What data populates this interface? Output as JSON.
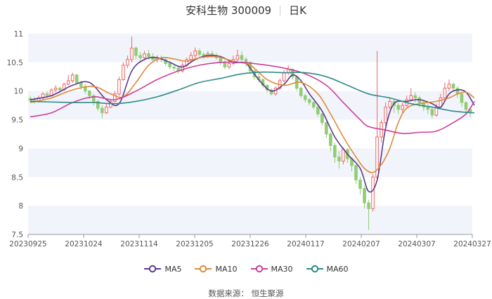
{
  "chart_data": {
    "type": "candlestick",
    "title": "安科生物 300009",
    "period": "日K",
    "x_ticks": [
      "20230925",
      "20231024",
      "20231114",
      "20231205",
      "20231226",
      "20240117",
      "20240207",
      "20240307",
      "20240327"
    ],
    "y_ticks": [
      "7.5",
      "8",
      "8.5",
      "9",
      "9.5",
      "10",
      "10.5",
      "11"
    ],
    "ylim": [
      7.5,
      11
    ],
    "grid": "horizontal bands",
    "legend_position": "bottom",
    "up_color": "#ee6666",
    "down_color": "#91cc75",
    "candles": [
      [
        9.87,
        9.84,
        9.92,
        9.8
      ],
      [
        9.84,
        9.82,
        9.9,
        9.78
      ],
      [
        9.82,
        9.88,
        9.92,
        9.8
      ],
      [
        9.88,
        9.95,
        9.98,
        9.85
      ],
      [
        9.95,
        9.92,
        10.0,
        9.88
      ],
      [
        9.92,
        10.02,
        10.05,
        9.9
      ],
      [
        10.02,
        10.05,
        10.1,
        9.98
      ],
      [
        10.05,
        10.02,
        10.08,
        9.96
      ],
      [
        10.02,
        10.12,
        10.15,
        10.0
      ],
      [
        10.12,
        10.18,
        10.28,
        10.1
      ],
      [
        10.18,
        10.28,
        10.32,
        10.14
      ],
      [
        10.28,
        10.15,
        10.3,
        10.1
      ],
      [
        10.15,
        10.08,
        10.18,
        10.02
      ],
      [
        10.08,
        10.0,
        10.12,
        9.95
      ],
      [
        10.0,
        9.92,
        10.02,
        9.85
      ],
      [
        9.92,
        9.82,
        9.95,
        9.75
      ],
      [
        9.82,
        9.7,
        9.85,
        9.65
      ],
      [
        9.7,
        9.62,
        9.75,
        9.52
      ],
      [
        9.62,
        9.72,
        9.78,
        9.6
      ],
      [
        9.72,
        9.82,
        9.85,
        9.7
      ],
      [
        9.82,
        9.95,
        10.0,
        9.8
      ],
      [
        9.95,
        10.2,
        10.25,
        9.92
      ],
      [
        10.2,
        10.45,
        10.5,
        10.18
      ],
      [
        10.45,
        10.55,
        10.62,
        10.4
      ],
      [
        10.55,
        10.75,
        10.95,
        10.5
      ],
      [
        10.75,
        10.62,
        10.78,
        10.55
      ],
      [
        10.62,
        10.58,
        10.68,
        10.52
      ],
      [
        10.58,
        10.65,
        10.7,
        10.54
      ],
      [
        10.65,
        10.6,
        10.72,
        10.55
      ],
      [
        10.6,
        10.55,
        10.66,
        10.5
      ],
      [
        10.55,
        10.58,
        10.62,
        10.5
      ],
      [
        10.58,
        10.55,
        10.62,
        10.5
      ],
      [
        10.55,
        10.48,
        10.58,
        10.44
      ],
      [
        10.48,
        10.42,
        10.52,
        10.38
      ],
      [
        10.42,
        10.4,
        10.46,
        10.35
      ],
      [
        10.4,
        10.35,
        10.45,
        10.3
      ],
      [
        10.35,
        10.45,
        10.5,
        10.32
      ],
      [
        10.45,
        10.55,
        10.58,
        10.42
      ],
      [
        10.55,
        10.62,
        10.68,
        10.5
      ],
      [
        10.62,
        10.7,
        10.76,
        10.58
      ],
      [
        10.7,
        10.64,
        10.74,
        10.6
      ],
      [
        10.64,
        10.6,
        10.68,
        10.56
      ],
      [
        10.6,
        10.65,
        10.7,
        10.58
      ],
      [
        10.65,
        10.62,
        10.7,
        10.58
      ],
      [
        10.62,
        10.58,
        10.66,
        10.55
      ],
      [
        10.58,
        10.5,
        10.62,
        10.45
      ],
      [
        10.5,
        10.42,
        10.55,
        10.38
      ],
      [
        10.42,
        10.48,
        10.52,
        10.38
      ],
      [
        10.48,
        10.55,
        10.62,
        10.45
      ],
      [
        10.55,
        10.62,
        10.72,
        10.52
      ],
      [
        10.62,
        10.55,
        10.7,
        10.5
      ],
      [
        10.55,
        10.5,
        10.6,
        10.42
      ],
      [
        10.5,
        10.35,
        10.52,
        10.3
      ],
      [
        10.35,
        10.25,
        10.38,
        10.2
      ],
      [
        10.25,
        10.2,
        10.3,
        10.15
      ],
      [
        10.2,
        10.1,
        10.22,
        10.05
      ],
      [
        10.1,
        10.02,
        10.12,
        9.98
      ],
      [
        10.02,
        9.95,
        10.05,
        9.92
      ],
      [
        9.95,
        10.05,
        10.08,
        9.92
      ],
      [
        10.05,
        10.18,
        10.22,
        10.02
      ],
      [
        10.18,
        10.32,
        10.36,
        10.15
      ],
      [
        10.32,
        10.38,
        10.45,
        10.28
      ],
      [
        10.38,
        10.25,
        10.4,
        10.2
      ],
      [
        10.25,
        10.05,
        10.28,
        10.0
      ],
      [
        10.05,
        9.92,
        10.08,
        9.88
      ],
      [
        9.92,
        9.85,
        9.95,
        9.8
      ],
      [
        9.85,
        9.8,
        9.88,
        9.75
      ],
      [
        9.8,
        9.72,
        9.82,
        9.68
      ],
      [
        9.72,
        9.6,
        9.75,
        9.55
      ],
      [
        9.6,
        9.45,
        9.62,
        9.4
      ],
      [
        9.45,
        9.25,
        9.48,
        9.18
      ],
      [
        9.25,
        9.05,
        9.28,
        8.95
      ],
      [
        9.05,
        8.85,
        9.1,
        8.75
      ],
      [
        8.85,
        8.78,
        8.95,
        8.65
      ],
      [
        8.78,
        8.98,
        9.02,
        8.72
      ],
      [
        8.98,
        8.82,
        9.0,
        8.75
      ],
      [
        8.82,
        8.7,
        8.85,
        8.6
      ],
      [
        8.7,
        8.45,
        8.72,
        8.38
      ],
      [
        8.45,
        8.3,
        8.5,
        8.2
      ],
      [
        8.3,
        8.05,
        8.35,
        7.95
      ],
      [
        8.05,
        7.95,
        8.1,
        7.58
      ],
      [
        7.95,
        8.5,
        8.55,
        7.9
      ],
      [
        8.5,
        9.2,
        10.7,
        8.45
      ],
      [
        9.2,
        9.45,
        9.5,
        9.1
      ],
      [
        9.45,
        9.72,
        9.8,
        9.4
      ],
      [
        9.72,
        9.82,
        9.88,
        9.68
      ],
      [
        9.82,
        9.75,
        9.85,
        9.62
      ],
      [
        9.75,
        9.68,
        9.8,
        9.6
      ],
      [
        9.68,
        9.75,
        9.8,
        9.62
      ],
      [
        9.75,
        9.85,
        9.92,
        9.72
      ],
      [
        9.85,
        9.92,
        10.05,
        9.82
      ],
      [
        9.92,
        9.88,
        9.98,
        9.8
      ],
      [
        9.88,
        9.8,
        9.92,
        9.72
      ],
      [
        9.8,
        9.72,
        9.85,
        9.65
      ],
      [
        9.72,
        9.68,
        9.78,
        9.6
      ],
      [
        9.68,
        9.58,
        9.72,
        9.52
      ],
      [
        9.58,
        9.72,
        9.78,
        9.55
      ],
      [
        9.72,
        9.88,
        9.95,
        9.7
      ],
      [
        9.88,
        10.05,
        10.15,
        9.85
      ],
      [
        10.05,
        10.12,
        10.2,
        10.0
      ],
      [
        10.12,
        10.05,
        10.15,
        9.98
      ],
      [
        10.05,
        9.95,
        10.08,
        9.88
      ],
      [
        9.95,
        9.8,
        9.98,
        9.72
      ],
      [
        9.8,
        9.68,
        9.82,
        9.6
      ],
      [
        9.68,
        9.62,
        9.72,
        9.55
      ]
    ],
    "series": [
      {
        "name": "MA5",
        "color": "#5b3a8f",
        "values": [
          [
            0,
            9.85
          ],
          [
            5,
            9.92
          ],
          [
            10,
            10.1
          ],
          [
            14,
            10.15
          ],
          [
            18,
            9.85
          ],
          [
            21,
            9.78
          ],
          [
            24,
            10.35
          ],
          [
            27,
            10.55
          ],
          [
            30,
            10.58
          ],
          [
            33,
            10.5
          ],
          [
            36,
            10.42
          ],
          [
            39,
            10.55
          ],
          [
            42,
            10.62
          ],
          [
            45,
            10.6
          ],
          [
            48,
            10.5
          ],
          [
            51,
            10.48
          ],
          [
            54,
            10.2
          ],
          [
            57,
            10.0
          ],
          [
            60,
            10.12
          ],
          [
            62,
            10.28
          ],
          [
            64,
            10.18
          ],
          [
            66,
            9.95
          ],
          [
            69,
            9.65
          ],
          [
            72,
            9.2
          ],
          [
            75,
            8.9
          ],
          [
            78,
            8.65
          ],
          [
            80,
            8.25
          ],
          [
            82,
            8.45
          ],
          [
            84,
            9.35
          ],
          [
            86,
            9.78
          ],
          [
            89,
            9.82
          ],
          [
            92,
            9.85
          ],
          [
            95,
            9.78
          ],
          [
            97,
            9.72
          ],
          [
            99,
            9.95
          ],
          [
            101,
            10.02
          ],
          [
            103,
            9.98
          ],
          [
            105,
            9.75
          ]
        ]
      },
      {
        "name": "MA10",
        "color": "#dd8b3a",
        "values": [
          [
            0,
            9.8
          ],
          [
            5,
            9.88
          ],
          [
            10,
            10.02
          ],
          [
            15,
            10.08
          ],
          [
            19,
            9.95
          ],
          [
            22,
            9.9
          ],
          [
            25,
            10.15
          ],
          [
            28,
            10.45
          ],
          [
            31,
            10.58
          ],
          [
            34,
            10.56
          ],
          [
            37,
            10.52
          ],
          [
            40,
            10.58
          ],
          [
            44,
            10.6
          ],
          [
            48,
            10.52
          ],
          [
            52,
            10.45
          ],
          [
            56,
            10.2
          ],
          [
            60,
            10.1
          ],
          [
            64,
            10.15
          ],
          [
            68,
            9.95
          ],
          [
            71,
            9.6
          ],
          [
            74,
            9.2
          ],
          [
            77,
            8.85
          ],
          [
            79,
            8.65
          ],
          [
            81,
            8.58
          ],
          [
            83,
            8.72
          ],
          [
            85,
            9.0
          ],
          [
            87,
            9.45
          ],
          [
            89,
            9.7
          ],
          [
            92,
            9.78
          ],
          [
            96,
            9.82
          ],
          [
            99,
            9.88
          ],
          [
            101,
            9.95
          ],
          [
            103,
            9.98
          ],
          [
            105,
            9.88
          ]
        ]
      },
      {
        "name": "MA30",
        "color": "#cc3e9a",
        "values": [
          [
            0,
            9.55
          ],
          [
            5,
            9.62
          ],
          [
            10,
            9.8
          ],
          [
            15,
            9.9
          ],
          [
            20,
            9.85
          ],
          [
            25,
            10.0
          ],
          [
            30,
            10.2
          ],
          [
            35,
            10.35
          ],
          [
            40,
            10.45
          ],
          [
            45,
            10.5
          ],
          [
            50,
            10.5
          ],
          [
            55,
            10.46
          ],
          [
            60,
            10.4
          ],
          [
            65,
            10.3
          ],
          [
            70,
            10.1
          ],
          [
            74,
            9.8
          ],
          [
            78,
            9.5
          ],
          [
            80,
            9.38
          ],
          [
            84,
            9.32
          ],
          [
            88,
            9.26
          ],
          [
            92,
            9.28
          ],
          [
            96,
            9.3
          ],
          [
            100,
            9.45
          ],
          [
            103,
            9.6
          ],
          [
            105,
            9.82
          ]
        ]
      },
      {
        "name": "MA60",
        "color": "#2e8a88",
        "values": [
          [
            0,
            9.82
          ],
          [
            10,
            9.8
          ],
          [
            15,
            9.8
          ],
          [
            20,
            9.78
          ],
          [
            25,
            9.82
          ],
          [
            30,
            9.9
          ],
          [
            35,
            10.02
          ],
          [
            40,
            10.15
          ],
          [
            45,
            10.22
          ],
          [
            50,
            10.3
          ],
          [
            55,
            10.33
          ],
          [
            60,
            10.32
          ],
          [
            65,
            10.32
          ],
          [
            70,
            10.25
          ],
          [
            75,
            10.1
          ],
          [
            80,
            9.95
          ],
          [
            85,
            9.88
          ],
          [
            90,
            9.78
          ],
          [
            95,
            9.72
          ],
          [
            100,
            9.65
          ],
          [
            105,
            9.62
          ]
        ]
      }
    ]
  },
  "legend": {
    "items": [
      {
        "label": "MA5",
        "color": "#5b3a8f"
      },
      {
        "label": "MA10",
        "color": "#dd8b3a"
      },
      {
        "label": "MA30",
        "color": "#cc3e9a"
      },
      {
        "label": "MA60",
        "color": "#2e8a88"
      }
    ]
  },
  "source": "数据来源： 恒生聚源"
}
